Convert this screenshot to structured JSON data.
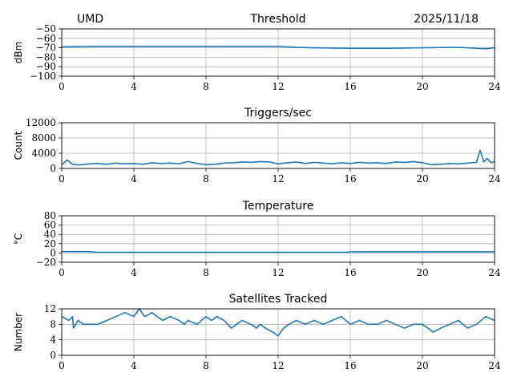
{
  "header": {
    "site": "UMD",
    "date": "2025/11/18"
  },
  "style": {
    "line_color": "#1f77b4",
    "grid_color": "#b0b0b0"
  },
  "chart_data": [
    {
      "type": "line",
      "title": "Threshold",
      "ylabel": "dBm",
      "xlim": [
        0,
        24
      ],
      "ylim": [
        -100,
        -50
      ],
      "xticks": [
        0,
        4,
        8,
        12,
        16,
        20,
        24
      ],
      "xtick_labels": [
        "0",
        "4",
        "8",
        "12",
        "16",
        "20",
        "24"
      ],
      "yticks": [
        -100,
        -90,
        -80,
        -70,
        -60,
        -50
      ],
      "ytick_labels": [
        "−100",
        "−90",
        "−80",
        "−70",
        "−60",
        "−50"
      ],
      "grid": true,
      "series": [
        {
          "x": [
            0,
            2,
            4,
            6,
            8,
            10,
            12,
            13,
            14,
            16,
            18,
            20,
            22,
            23.5,
            24
          ],
          "y": [
            -69,
            -68.5,
            -68.5,
            -68.5,
            -68.5,
            -68.5,
            -68.5,
            -69.5,
            -70,
            -70.5,
            -70.5,
            -70,
            -69.5,
            -71,
            -70
          ]
        }
      ]
    },
    {
      "type": "line",
      "title": "Triggers/sec",
      "ylabel": "Count",
      "xlim": [
        0,
        24
      ],
      "ylim": [
        0,
        12000
      ],
      "xticks": [
        0,
        4,
        8,
        12,
        16,
        20,
        24
      ],
      "xtick_labels": [
        "0",
        "4",
        "8",
        "12",
        "16",
        "20",
        "24"
      ],
      "yticks": [
        0,
        4000,
        8000,
        12000
      ],
      "ytick_labels": [
        "0",
        "4000",
        "8000",
        "12000"
      ],
      "grid": true,
      "series": [
        {
          "x": [
            0,
            0.3,
            0.6,
            1,
            1.5,
            2,
            2.5,
            3,
            3.5,
            4,
            4.5,
            5,
            5.5,
            6,
            6.5,
            7,
            7.5,
            8,
            8.5,
            9,
            9.5,
            10,
            10.5,
            11,
            11.5,
            12,
            12.5,
            13,
            13.5,
            14,
            14.5,
            15,
            15.5,
            16,
            16.5,
            17,
            17.5,
            18,
            18.5,
            19,
            19.5,
            20,
            20.5,
            21,
            21.5,
            22,
            22.5,
            23,
            23.2,
            23.4,
            23.6,
            23.8,
            24
          ],
          "y": [
            1000,
            2200,
            1100,
            900,
            1200,
            1300,
            1100,
            1400,
            1200,
            1300,
            1100,
            1500,
            1300,
            1400,
            1200,
            1800,
            1300,
            1000,
            1100,
            1400,
            1500,
            1700,
            1600,
            1800,
            1700,
            1200,
            1500,
            1700,
            1300,
            1600,
            1400,
            1200,
            1500,
            1300,
            1600,
            1400,
            1500,
            1300,
            1700,
            1600,
            1800,
            1500,
            1000,
            1100,
            1300,
            1200,
            1400,
            1600,
            4800,
            1700,
            2600,
            1500,
            1800
          ]
        }
      ]
    },
    {
      "type": "line",
      "title": "Temperature",
      "ylabel": "°C",
      "xlim": [
        0,
        24
      ],
      "ylim": [
        -20,
        80
      ],
      "xticks": [
        0,
        4,
        8,
        12,
        16,
        20,
        24
      ],
      "xtick_labels": [
        "0",
        "4",
        "8",
        "12",
        "16",
        "20",
        "24"
      ],
      "yticks": [
        -20,
        0,
        20,
        40,
        60,
        80
      ],
      "ytick_labels": [
        "−20",
        "0",
        "20",
        "40",
        "60",
        "80"
      ],
      "grid": true,
      "series": [
        {
          "x": [
            0,
            1.5,
            2,
            4,
            8,
            12,
            15.8,
            16,
            20,
            24
          ],
          "y": [
            3,
            3,
            1.5,
            1.5,
            1.5,
            1.5,
            1.5,
            2.5,
            2.5,
            2.5
          ]
        }
      ]
    },
    {
      "type": "line",
      "title": "Satellites Tracked",
      "ylabel": "Number",
      "xlim": [
        0,
        24
      ],
      "ylim": [
        0,
        12
      ],
      "xticks": [
        0,
        4,
        8,
        12,
        16,
        20,
        24
      ],
      "xtick_labels": [
        "0",
        "4",
        "8",
        "12",
        "16",
        "20",
        "24"
      ],
      "yticks": [
        0,
        4,
        8,
        12
      ],
      "ytick_labels": [
        "0",
        "4",
        "8",
        "12"
      ],
      "grid": true,
      "series": [
        {
          "x": [
            0,
            0.4,
            0.6,
            0.65,
            0.9,
            1.2,
            2,
            2.5,
            3,
            3.5,
            4,
            4.3,
            4.6,
            5,
            5.3,
            5.6,
            6,
            6.5,
            6.8,
            7,
            7.5,
            8,
            8.3,
            8.6,
            9,
            9.4,
            9.7,
            10,
            10.5,
            10.8,
            11,
            11.3,
            11.7,
            12,
            12.3,
            12.6,
            13,
            13.5,
            14,
            14.5,
            15,
            15.5,
            16,
            16.5,
            17,
            17.5,
            18,
            18.5,
            19,
            19.5,
            20,
            20.3,
            20.6,
            21,
            21.5,
            22,
            22.5,
            23,
            23.5,
            24
          ],
          "y": [
            10,
            9,
            10,
            7,
            9,
            8,
            8,
            9,
            10,
            11,
            10,
            12,
            10,
            11,
            10,
            9,
            10,
            9,
            8,
            9,
            8,
            10,
            9,
            10,
            9,
            7,
            8,
            9,
            8,
            7,
            8,
            7,
            6,
            5,
            7,
            8,
            9,
            8,
            9,
            8,
            9,
            10,
            8,
            9,
            8,
            8,
            9,
            8,
            7,
            8,
            8,
            7,
            6,
            7,
            8,
            9,
            7,
            8,
            10,
            9
          ]
        }
      ]
    }
  ]
}
